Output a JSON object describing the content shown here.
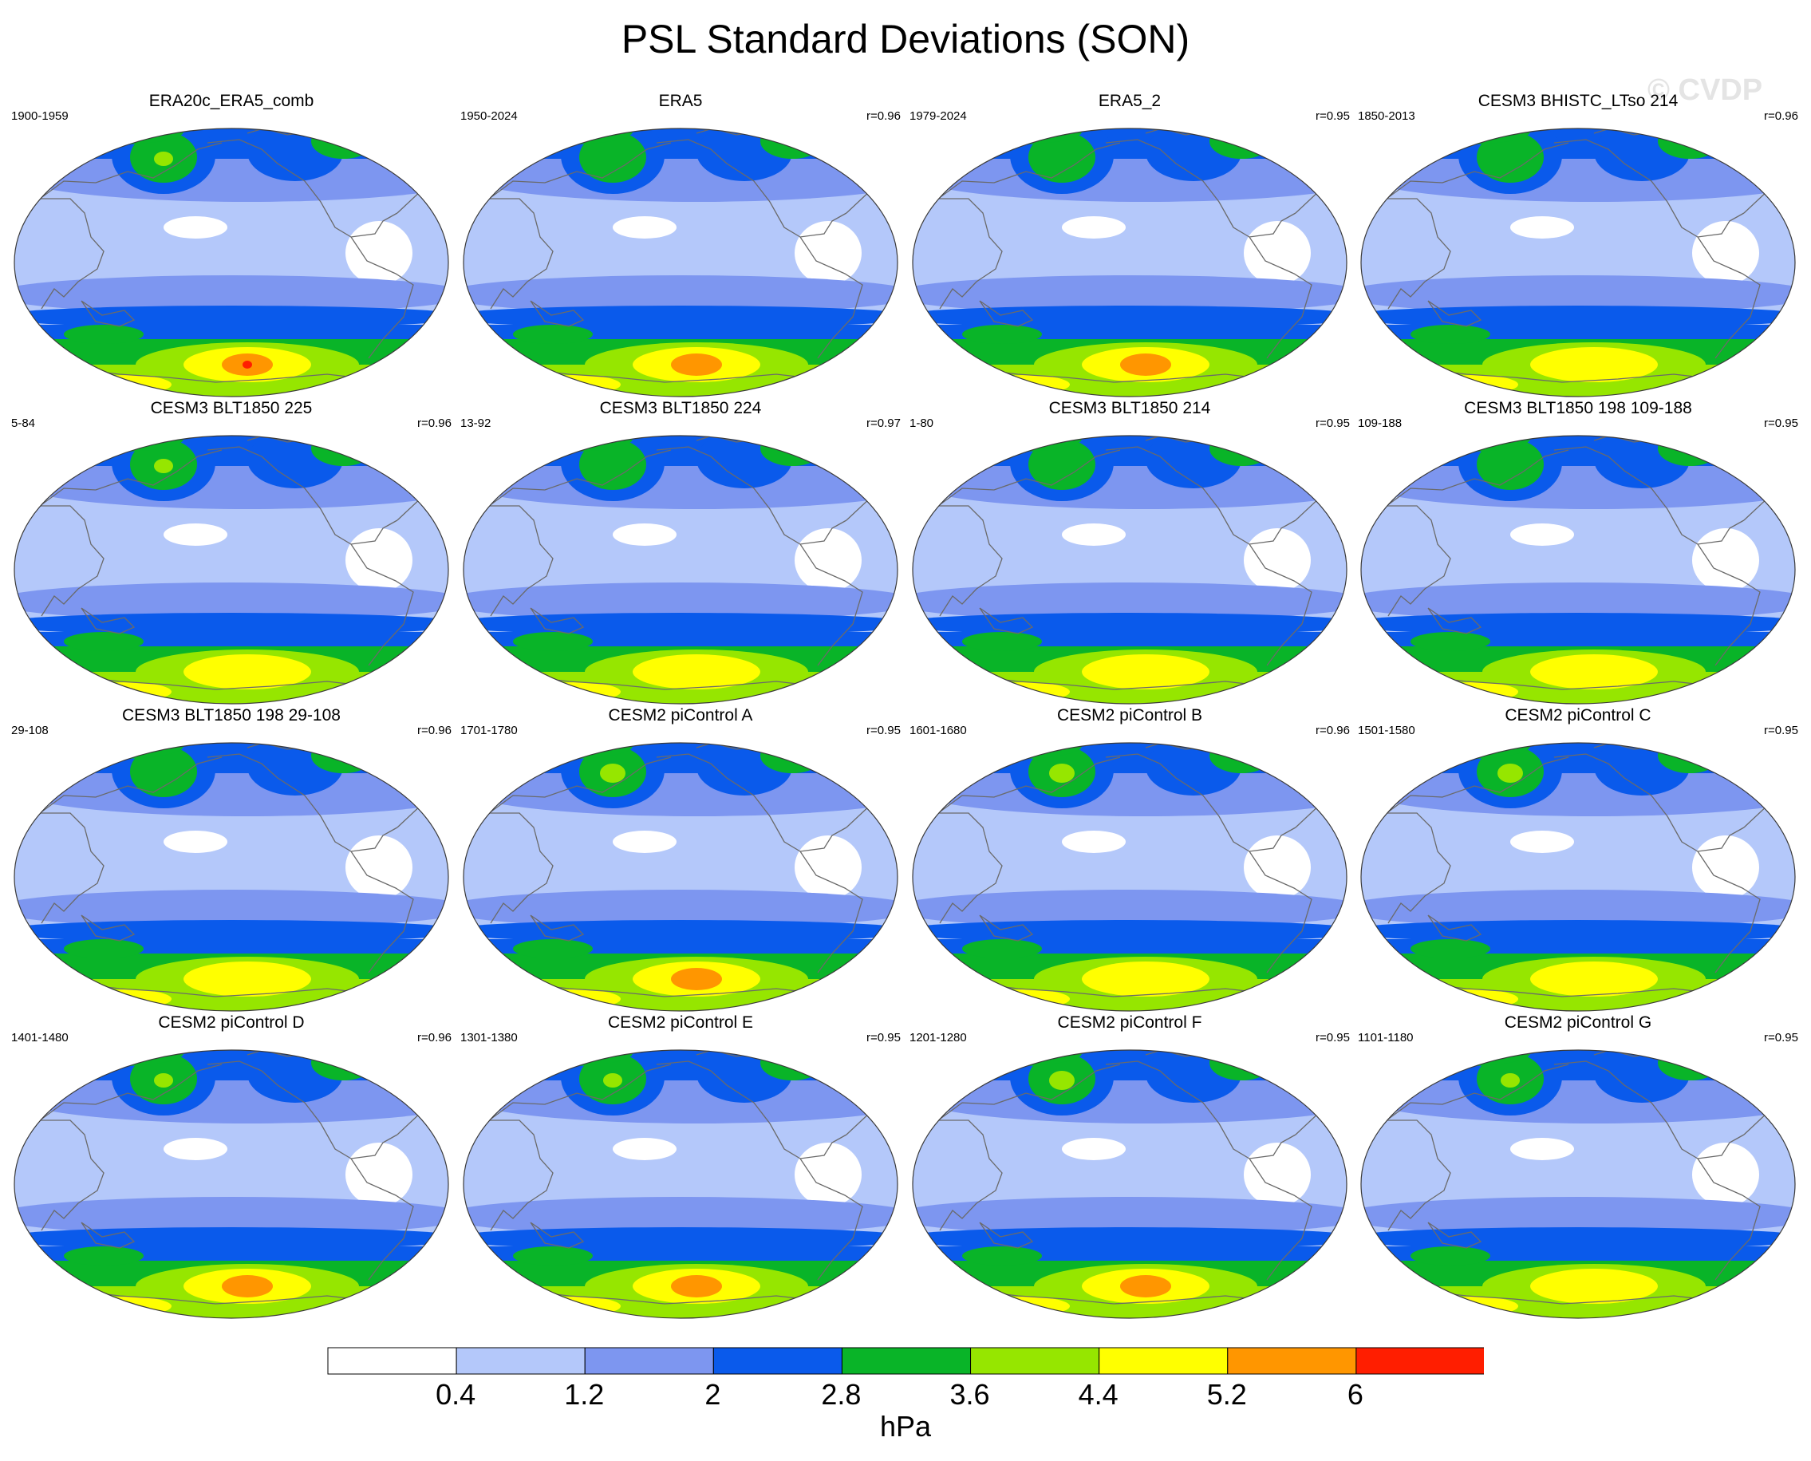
{
  "title": "PSL Standard Deviations (SON)",
  "watermark": "© CVDP",
  "units": "hPa",
  "colors": {
    "levels": [
      "#ffffff",
      "#b4c8fa",
      "#7d96f0",
      "#0a5aeb",
      "#09b428",
      "#96e600",
      "#ffff00",
      "#ff9600",
      "#ff1e00"
    ],
    "coast": "#6a6a6a",
    "outline": "#3a3a3a"
  },
  "colorbar": {
    "labels": [
      "0.4",
      "1.2",
      "2",
      "2.8",
      "3.6",
      "4.4",
      "5.2",
      "6"
    ]
  },
  "panels": [
    {
      "title": "ERA20c_ERA5_comb",
      "period": "1900-1959",
      "corr": "",
      "south_peak": 6.1,
      "north_peak": 3.7
    },
    {
      "title": "ERA5",
      "period": "1950-2024",
      "corr": "r=0.96",
      "south_peak": 5.4,
      "north_peak": 3.4
    },
    {
      "title": "ERA5_2",
      "period": "1979-2024",
      "corr": "r=0.95",
      "south_peak": 5.4,
      "north_peak": 3.4
    },
    {
      "title": "CESM3 BHISTC_LTso 214",
      "period": "1850-2013",
      "corr": "r=0.96",
      "south_peak": 4.9,
      "north_peak": 3.4
    },
    {
      "title": "CESM3 BLT1850 225",
      "period": "5-84",
      "corr": "r=0.96",
      "south_peak": 4.9,
      "north_peak": 3.7
    },
    {
      "title": "CESM3 BLT1850 224",
      "period": "13-92",
      "corr": "r=0.97",
      "south_peak": 5.0,
      "north_peak": 3.5
    },
    {
      "title": "CESM3 BLT1850 214",
      "period": "1-80",
      "corr": "r=0.95",
      "south_peak": 4.9,
      "north_peak": 3.4
    },
    {
      "title": "CESM3 BLT1850 198 109-188",
      "period": "109-188",
      "corr": "r=0.95",
      "south_peak": 4.8,
      "north_peak": 3.4
    },
    {
      "title": "CESM3 BLT1850 198 29-108",
      "period": "29-108",
      "corr": "r=0.96",
      "south_peak": 4.8,
      "north_peak": 3.4
    },
    {
      "title": "CESM2 piControl A",
      "period": "1701-1780",
      "corr": "r=0.95",
      "south_peak": 5.6,
      "north_peak": 4.6
    },
    {
      "title": "CESM2 piControl B",
      "period": "1601-1680",
      "corr": "r=0.96",
      "south_peak": 5.0,
      "north_peak": 4.6
    },
    {
      "title": "CESM2 piControl C",
      "period": "1501-1580",
      "corr": "r=0.95",
      "south_peak": 4.9,
      "north_peak": 4.6
    },
    {
      "title": "CESM2 piControl D",
      "period": "1401-1480",
      "corr": "r=0.96",
      "south_peak": 5.6,
      "north_peak": 3.7
    },
    {
      "title": "CESM2 piControl E",
      "period": "1301-1380",
      "corr": "r=0.95",
      "south_peak": 5.5,
      "north_peak": 3.7
    },
    {
      "title": "CESM2 piControl F",
      "period": "1201-1280",
      "corr": "r=0.95",
      "south_peak": 5.4,
      "north_peak": 4.5
    },
    {
      "title": "CESM2 piControl G",
      "period": "1101-1180",
      "corr": "r=0.95",
      "south_peak": 4.9,
      "north_peak": 3.7
    }
  ]
}
